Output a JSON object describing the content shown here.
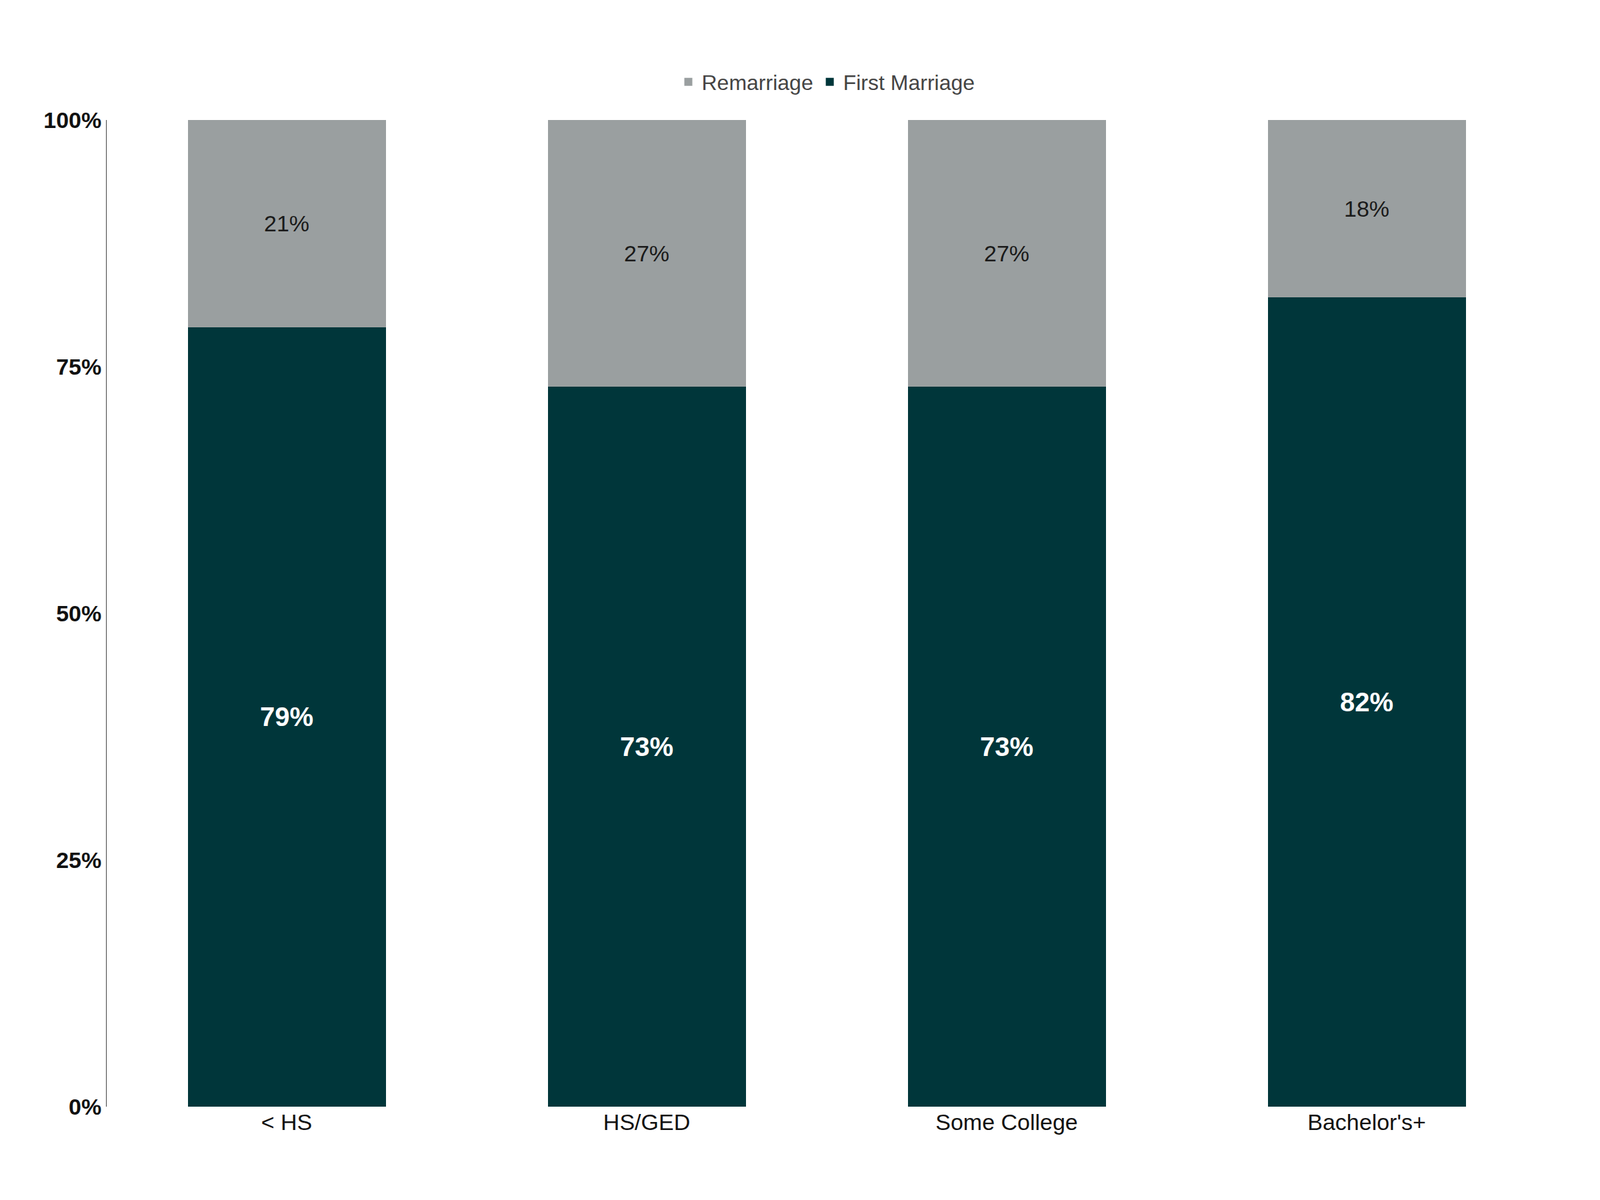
{
  "chart_data": {
    "type": "bar",
    "stacked": true,
    "categories": [
      "< HS",
      "HS/GED",
      "Some College",
      "Bachelor's+"
    ],
    "series": [
      {
        "name": "First Marriage",
        "color": "#00363a",
        "values": [
          79,
          73,
          73,
          82
        ],
        "value_labels": [
          "79%",
          "73%",
          "73%",
          "82%"
        ]
      },
      {
        "name": "Remarriage",
        "color": "#9a9fa0",
        "values": [
          21,
          27,
          27,
          18
        ],
        "value_labels": [
          "21%",
          "27%",
          "27%",
          "18%"
        ]
      }
    ],
    "ylim": [
      0,
      100
    ],
    "yticks": [
      {
        "value": 0,
        "label": "0%"
      },
      {
        "value": 25,
        "label": "25%"
      },
      {
        "value": 50,
        "label": "50%"
      },
      {
        "value": 75,
        "label": "75%"
      },
      {
        "value": 100,
        "label": "100%"
      }
    ],
    "grid": false,
    "legend": "top",
    "data_labels": true
  }
}
